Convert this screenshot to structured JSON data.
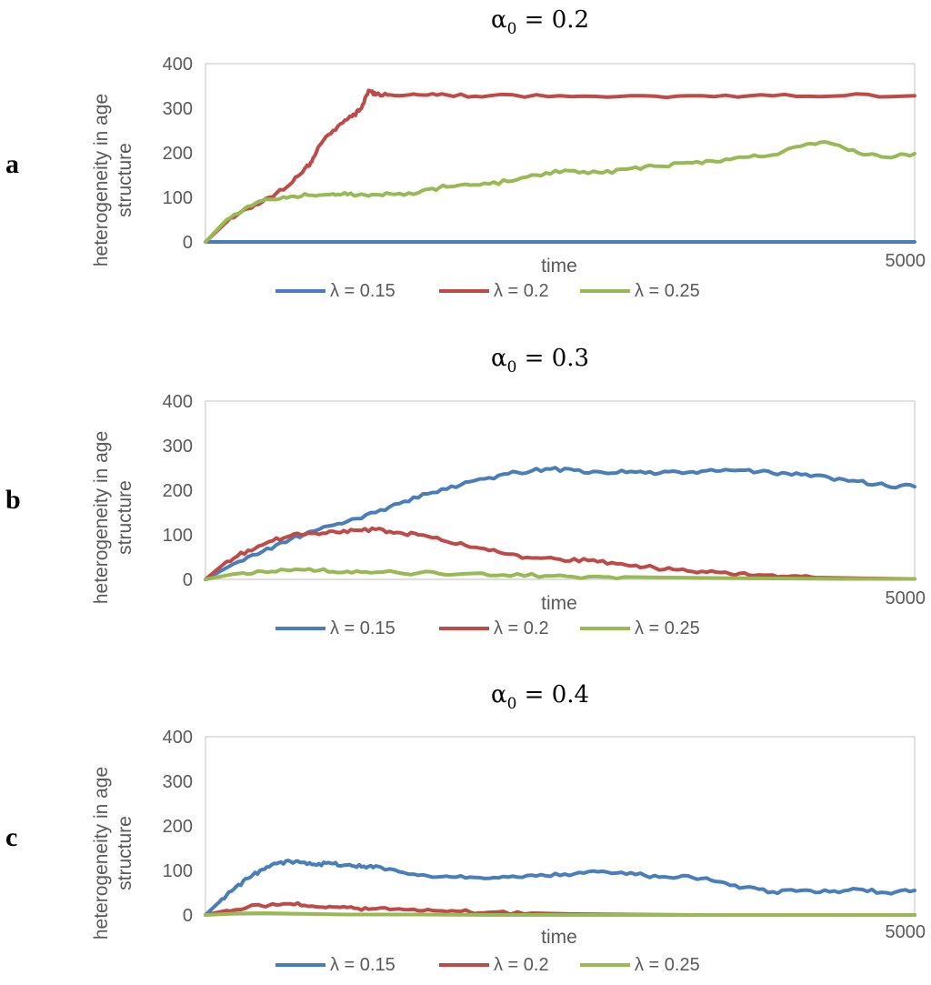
{
  "chart_data": [
    {
      "type": "line",
      "panel_label": "a",
      "title_symbol": "α",
      "title_subscript": "0",
      "title_value": " = 0.2",
      "xlabel": "time",
      "ylabel_lines": [
        "heterogeneity in age",
        "structure"
      ],
      "x_end_label": "5000",
      "xlim": [
        0,
        5000
      ],
      "ylim": [
        0,
        400
      ],
      "yticks": [
        0,
        100,
        200,
        300,
        400
      ],
      "grid": false,
      "legend_position": "bottom",
      "series": [
        {
          "name": "λ = 0.15",
          "color": "#4a7ebb",
          "x": [
            0,
            5000
          ],
          "y": [
            0,
            0
          ]
        },
        {
          "name": "λ = 0.2",
          "color": "#be4b48",
          "x": [
            0,
            150,
            300,
            450,
            600,
            700,
            750,
            800,
            900,
            1000,
            1050,
            1100,
            1150,
            1200,
            1300,
            1500,
            1700,
            2000,
            2500,
            3000,
            3500,
            4000,
            4500,
            5000
          ],
          "y": [
            0,
            45,
            75,
            100,
            130,
            165,
            180,
            215,
            250,
            275,
            285,
            300,
            340,
            330,
            330,
            330,
            330,
            328,
            328,
            328,
            328,
            328,
            328,
            328
          ]
        },
        {
          "name": "λ = 0.25",
          "color": "#98b954",
          "x": [
            0,
            150,
            300,
            450,
            600,
            750,
            900,
            1000,
            1150,
            1300,
            1500,
            1650,
            1800,
            2000,
            2200,
            2400,
            2600,
            2800,
            3000,
            3200,
            3400,
            3600,
            3800,
            4000,
            4200,
            4400,
            4600,
            4800,
            5000
          ],
          "y": [
            0,
            50,
            80,
            95,
            102,
            105,
            108,
            106,
            103,
            108,
            110,
            122,
            128,
            130,
            140,
            155,
            160,
            155,
            165,
            170,
            178,
            180,
            190,
            195,
            215,
            222,
            200,
            190,
            198
          ]
        }
      ]
    },
    {
      "type": "line",
      "panel_label": "b",
      "title_symbol": "α",
      "title_subscript": "0",
      "title_value": " = 0.3",
      "xlabel": "time",
      "ylabel_lines": [
        "heterogeneity in age",
        "structure"
      ],
      "x_end_label": "5000",
      "xlim": [
        0,
        5000
      ],
      "ylim": [
        0,
        400
      ],
      "yticks": [
        0,
        100,
        200,
        300,
        400
      ],
      "grid": false,
      "legend_position": "bottom",
      "series": [
        {
          "name": "λ = 0.15",
          "color": "#4a7ebb",
          "x": [
            0,
            200,
            400,
            600,
            800,
            1000,
            1200,
            1400,
            1600,
            1800,
            2000,
            2200,
            2400,
            2600,
            2800,
            3000,
            3200,
            3400,
            3600,
            3800,
            4000,
            4200,
            4400,
            4600,
            4800,
            5000
          ],
          "y": [
            0,
            35,
            62,
            90,
            112,
            130,
            150,
            175,
            195,
            212,
            228,
            240,
            248,
            245,
            240,
            242,
            238,
            240,
            243,
            245,
            238,
            235,
            228,
            220,
            210,
            208
          ]
        },
        {
          "name": "λ = 0.2",
          "color": "#be4b48",
          "x": [
            0,
            150,
            300,
            450,
            600,
            750,
            900,
            1050,
            1200,
            1350,
            1500,
            1700,
            1900,
            2100,
            2300,
            2500,
            2700,
            2900,
            3100,
            3300,
            3500,
            3700,
            3900,
            4100,
            4300,
            4500,
            4700,
            5000
          ],
          "y": [
            0,
            40,
            65,
            85,
            98,
            103,
            108,
            110,
            112,
            105,
            100,
            85,
            72,
            58,
            48,
            45,
            42,
            35,
            28,
            22,
            18,
            12,
            10,
            6,
            4,
            3,
            2,
            1
          ]
        },
        {
          "name": "λ = 0.25",
          "color": "#98b954",
          "x": [
            0,
            200,
            400,
            600,
            800,
            1000,
            1200,
            1500,
            1800,
            2100,
            2400,
            2700,
            3000,
            3300,
            3600,
            4000,
            4500,
            5000
          ],
          "y": [
            0,
            12,
            18,
            20,
            20,
            18,
            16,
            14,
            12,
            10,
            8,
            6,
            5,
            4,
            3,
            2,
            1,
            1
          ]
        }
      ]
    },
    {
      "type": "line",
      "panel_label": "c",
      "title_symbol": "α",
      "title_subscript": "0",
      "title_value": " = 0.4",
      "xlabel": "time",
      "ylabel_lines": [
        "heterogeneity in age",
        "structure"
      ],
      "x_end_label": "5000",
      "xlim": [
        0,
        5000
      ],
      "ylim": [
        0,
        400
      ],
      "yticks": [
        0,
        100,
        200,
        300,
        400
      ],
      "grid": false,
      "legend_position": "bottom",
      "series": [
        {
          "name": "λ = 0.15",
          "color": "#4a7ebb",
          "x": [
            0,
            100,
            200,
            300,
            400,
            500,
            600,
            700,
            800,
            900,
            1000,
            1100,
            1200,
            1400,
            1600,
            1800,
            2000,
            2200,
            2400,
            2600,
            2800,
            3000,
            3200,
            3400,
            3600,
            3800,
            4000,
            4200,
            4400,
            4600,
            4800,
            5000
          ],
          "y": [
            0,
            30,
            58,
            82,
            102,
            115,
            120,
            118,
            115,
            115,
            112,
            108,
            110,
            95,
            85,
            88,
            82,
            85,
            88,
            92,
            98,
            95,
            85,
            88,
            75,
            62,
            52,
            55,
            52,
            58,
            50,
            55
          ]
        },
        {
          "name": "λ = 0.2",
          "color": "#be4b48",
          "x": [
            0,
            150,
            300,
            450,
            600,
            750,
            900,
            1050,
            1200,
            1400,
            1600,
            1800,
            2000,
            2300,
            2600,
            3000,
            3500,
            4000,
            4500,
            5000
          ],
          "y": [
            0,
            10,
            18,
            22,
            25,
            20,
            18,
            15,
            14,
            12,
            10,
            8,
            6,
            4,
            2,
            1,
            0,
            0,
            0,
            0
          ]
        },
        {
          "name": "λ = 0.25",
          "color": "#98b954",
          "x": [
            0,
            200,
            400,
            600,
            800,
            1000,
            1500,
            2000,
            3000,
            4000,
            5000
          ],
          "y": [
            0,
            3,
            4,
            3,
            2,
            1,
            1,
            0,
            0,
            0,
            0
          ]
        }
      ]
    }
  ]
}
